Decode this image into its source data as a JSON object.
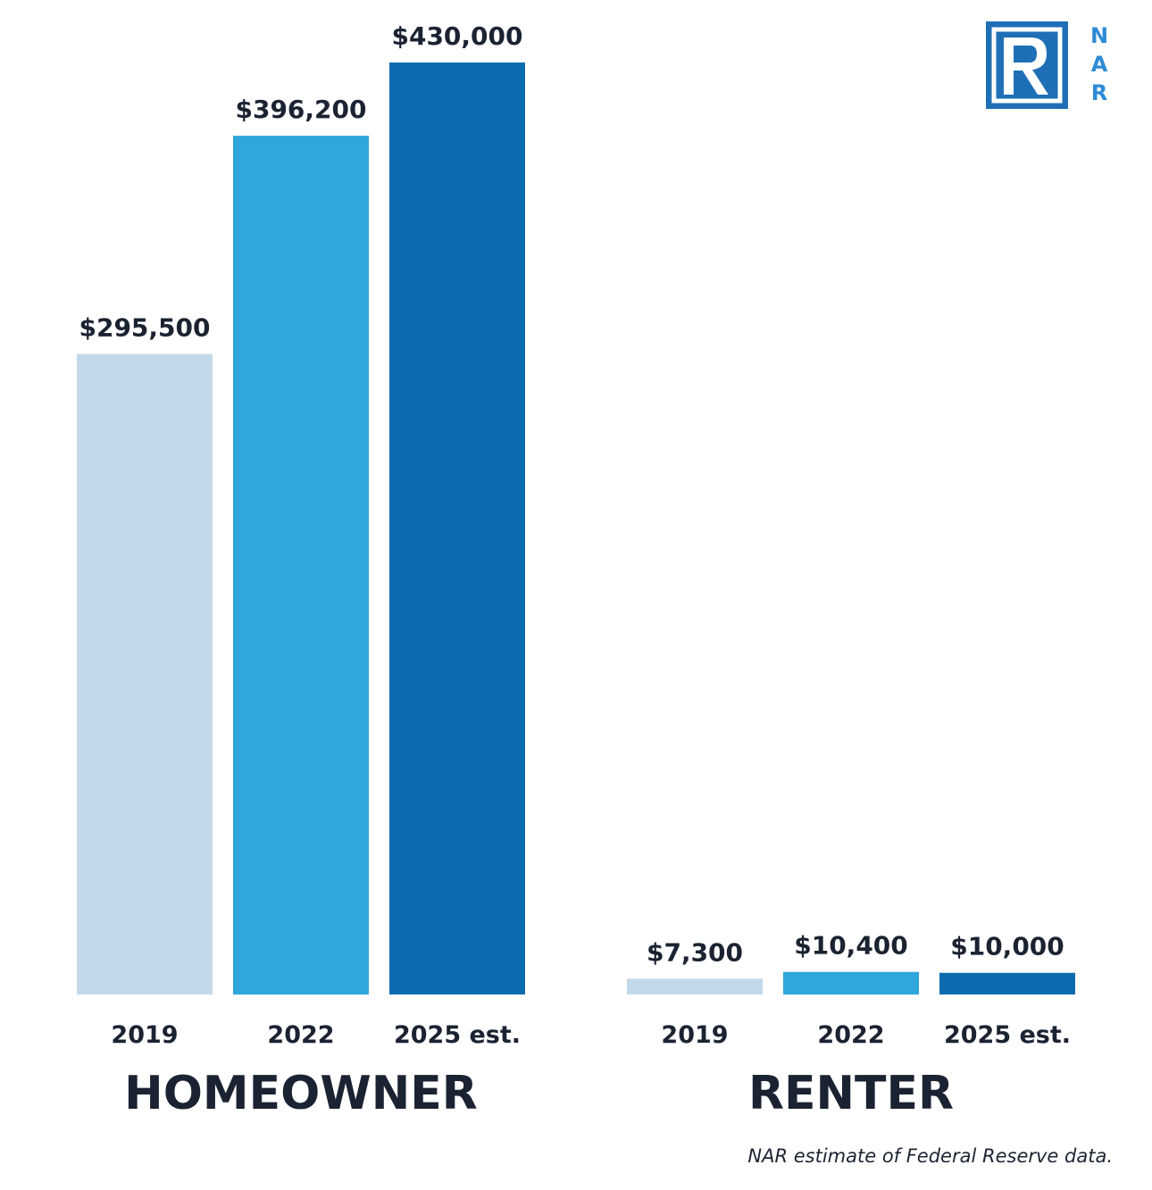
{
  "logo": {
    "letters": [
      "N",
      "A",
      "R"
    ]
  },
  "footnote": "NAR estimate of Federal Reserve data.",
  "chart_data": {
    "type": "bar",
    "ylim": [
      0,
      430000
    ],
    "colors": {
      "2019": "#c2d9ea",
      "2022": "#2fa6dc",
      "2025 est.": "#0d6cb0",
      "text": "#1b2332"
    },
    "groups": [
      {
        "name": "HOMEOWNER",
        "categories": [
          "2019",
          "2022",
          "2025 est."
        ],
        "values": [
          295500,
          396200,
          430000
        ],
        "labels": [
          "$295,500",
          "$396,200",
          "$430,000"
        ]
      },
      {
        "name": "RENTER",
        "categories": [
          "2019",
          "2022",
          "2025 est."
        ],
        "values": [
          7300,
          10400,
          10000
        ],
        "labels": [
          "$7,300",
          "$10,400",
          "$10,000"
        ]
      }
    ]
  }
}
